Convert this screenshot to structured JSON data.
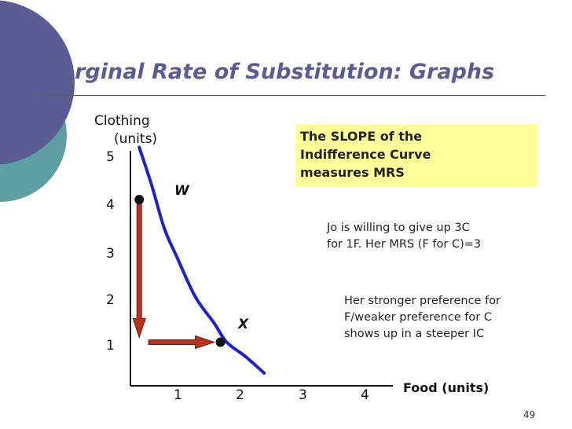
{
  "slide": {
    "title": "Marginal Rate of Substitution: Graphs",
    "page_number": "49",
    "callout_lines": [
      "The SLOPE of the",
      "Indifference Curve",
      "measures MRS"
    ],
    "note1_lines": [
      "Jo is willing to give up 3C",
      "for 1F. Her MRS (F for C)=3"
    ],
    "note2_lines": [
      "Her stronger preference for",
      "F/weaker preference for C",
      "shows up in a steeper IC"
    ],
    "theme_colors": {
      "title": "#5b5c94",
      "corner_dark": "#5b5c94",
      "corner_light": "#5e9fa3",
      "curve": "#1f1fd6",
      "arrow": "#b8331b",
      "callout_bg": "#ffff99"
    }
  },
  "chart_data": {
    "type": "line",
    "xlabel": "Food (units)",
    "ylabel_lines": [
      "Clothing",
      "(units)"
    ],
    "x_ticks": [
      "1",
      "2",
      "3",
      "4"
    ],
    "y_ticks": [
      "5",
      "4",
      "3",
      "2",
      "1"
    ],
    "xlim": [
      0,
      4.5
    ],
    "ylim": [
      0,
      5
    ],
    "grid": false,
    "curve": {
      "name": "",
      "x": [
        0.6,
        0.8,
        1.0,
        1.2,
        1.5,
        1.8,
        2.0,
        2.3,
        2.6
      ],
      "y": [
        5.1,
        4.3,
        3.4,
        2.8,
        1.95,
        1.4,
        1.0,
        0.7,
        0.35
      ]
    },
    "points": [
      {
        "label": "W",
        "x": 0.6,
        "y": 4.0
      },
      {
        "label": "X",
        "x": 1.9,
        "y": 1.0
      }
    ],
    "arrows": [
      {
        "from": [
          0.6,
          4.0
        ],
        "to": [
          0.6,
          1.1
        ]
      },
      {
        "from": [
          0.75,
          1.0
        ],
        "to": [
          1.8,
          1.0
        ]
      }
    ]
  }
}
